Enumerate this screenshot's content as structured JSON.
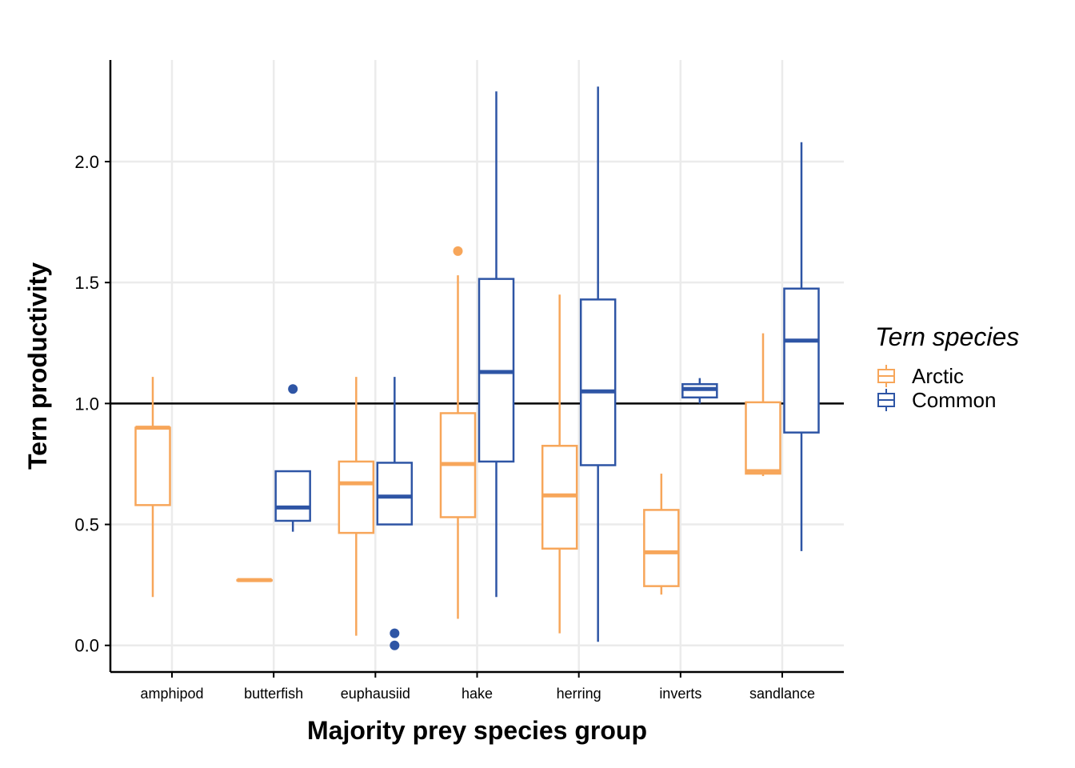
{
  "chart_data": {
    "type": "boxplot",
    "xlabel": "Majority prey species group",
    "ylabel": "Tern productivity",
    "ylim": [
      -0.11,
      2.42
    ],
    "y_ticks": [
      0.0,
      0.5,
      1.0,
      1.5,
      2.0
    ],
    "y_tick_labels": [
      "0.0",
      "0.5",
      "1.0",
      "1.5",
      "2.0"
    ],
    "reference_line": 1.0,
    "categories": [
      "amphipod",
      "butterfish",
      "euphausiid",
      "hake",
      "herring",
      "inverts",
      "sandlance"
    ],
    "legend": {
      "title": "Tern species",
      "position": "right",
      "entries": [
        "Arctic",
        "Common"
      ]
    },
    "colors": {
      "Arctic": "#F7A65A",
      "Common": "#2E55A5",
      "grid": "#EBEBEB",
      "axis": "#000000"
    },
    "series": [
      {
        "name": "Arctic",
        "boxes": [
          {
            "category": "amphipod",
            "whisker_low": 0.2,
            "q1": 0.58,
            "median": 0.9,
            "q3": 0.9,
            "whisker_high": 1.11,
            "outliers": []
          },
          {
            "category": "butterfish",
            "whisker_low": 0.27,
            "q1": 0.27,
            "median": 0.27,
            "q3": 0.27,
            "whisker_high": 0.27,
            "outliers": []
          },
          {
            "category": "euphausiid",
            "whisker_low": 0.04,
            "q1": 0.465,
            "median": 0.67,
            "q3": 0.76,
            "whisker_high": 1.11,
            "outliers": []
          },
          {
            "category": "hake",
            "whisker_low": 0.11,
            "q1": 0.53,
            "median": 0.75,
            "q3": 0.96,
            "whisker_high": 1.53,
            "outliers": [
              1.63
            ]
          },
          {
            "category": "herring",
            "whisker_low": 0.05,
            "q1": 0.4,
            "median": 0.62,
            "q3": 0.825,
            "whisker_high": 1.45,
            "outliers": []
          },
          {
            "category": "inverts",
            "whisker_low": 0.21,
            "q1": 0.245,
            "median": 0.385,
            "q3": 0.56,
            "whisker_high": 0.71,
            "outliers": []
          },
          {
            "category": "sandlance",
            "whisker_low": 0.7,
            "q1": 0.71,
            "median": 0.72,
            "q3": 1.005,
            "whisker_high": 1.29,
            "outliers": []
          }
        ]
      },
      {
        "name": "Common",
        "boxes": [
          {
            "category": "butterfish",
            "whisker_low": 0.47,
            "q1": 0.515,
            "median": 0.57,
            "q3": 0.72,
            "whisker_high": 0.72,
            "outliers": [
              1.06
            ]
          },
          {
            "category": "euphausiid",
            "whisker_low": 0.5,
            "q1": 0.5,
            "median": 0.615,
            "q3": 0.755,
            "whisker_high": 1.11,
            "outliers": [
              0.05,
              0.0
            ]
          },
          {
            "category": "hake",
            "whisker_low": 0.2,
            "q1": 0.76,
            "median": 1.13,
            "q3": 1.515,
            "whisker_high": 2.29,
            "outliers": []
          },
          {
            "category": "herring",
            "whisker_low": 0.015,
            "q1": 0.745,
            "median": 1.05,
            "q3": 1.43,
            "whisker_high": 2.31,
            "outliers": []
          },
          {
            "category": "inverts",
            "whisker_low": 1.0,
            "q1": 1.025,
            "median": 1.06,
            "q3": 1.08,
            "whisker_high": 1.105,
            "outliers": []
          },
          {
            "category": "sandlance",
            "whisker_low": 0.39,
            "q1": 0.88,
            "median": 1.26,
            "q3": 1.475,
            "whisker_high": 2.08,
            "outliers": []
          }
        ]
      }
    ]
  }
}
